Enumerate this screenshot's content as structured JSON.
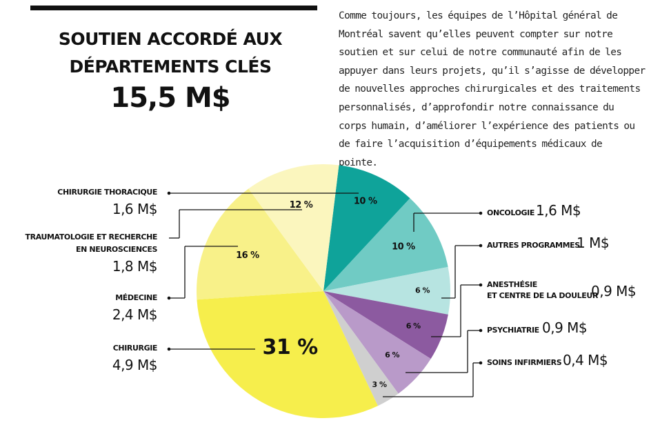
{
  "heading": {
    "line1": "SOUTIEN ACCORDÉ AUX",
    "line2": "DÉPARTEMENTS CLÉS",
    "total": "15,5 M$"
  },
  "intro": "Comme toujours, les équipes de l’Hôpital général de Montréal savent qu’elles peuvent compter sur notre soutien et sur celui de notre communauté afin de les appuyer dans leurs projets, qu’il s’agisse de développer de nouvelles approches chirurgicales et des traitements personnalisés, d’approfondir notre connaissance du corps humain, d’améliorer l’expérience des patients ou de faire l’acquisition d’équipements médicaux de pointe.",
  "labels": {
    "thoracique": {
      "name": "CHIRURGIE THORACIQUE",
      "value": "1,6 M$"
    },
    "trauma": {
      "name1": "TRAUMATOLOGIE ET RECHERCHE",
      "name2": "EN NEUROSCIENCES",
      "value": "1,8 M$"
    },
    "medecine": {
      "name": "MÉDECINE",
      "value": "2,4 M$"
    },
    "chirurgie": {
      "name": "CHIRURGIE",
      "value": "4,9 M$"
    },
    "oncologie": {
      "name": "ONCOLOGIE",
      "value": "1,6 M$"
    },
    "autres": {
      "name": "AUTRES PROGRAMMES",
      "value": "1 M$"
    },
    "anesthesie": {
      "name1": "ANESTHÉSIE",
      "name2": "ET CENTRE DE LA DOULEUR",
      "value": "0,9 M$"
    },
    "psychiatrie": {
      "name": "PSYCHIATRIE",
      "value": "0,9 M$"
    },
    "soins": {
      "name": "SOINS INFIRMIERS",
      "value": "0,4 M$"
    }
  },
  "chart_data": {
    "type": "pie",
    "slices": [
      {
        "label": "CHIRURGIE THORACIQUE",
        "percent": 10,
        "pct_text": "10 %",
        "color": "#0fa39a"
      },
      {
        "label": "ONCOLOGIE",
        "percent": 10,
        "pct_text": "10 %",
        "color": "#70cbc4"
      },
      {
        "label": "AUTRES PROGRAMMES",
        "percent": 6,
        "pct_text": "6 %",
        "color": "#b7e4e1"
      },
      {
        "label": "ANESTHÉSIE ET CENTRE DE LA DOULEUR",
        "percent": 6,
        "pct_text": "6 %",
        "color": "#8c5aa0"
      },
      {
        "label": "PSYCHIATRIE",
        "percent": 6,
        "pct_text": "6 %",
        "color": "#b99ac9"
      },
      {
        "label": "SOINS INFIRMIERS",
        "percent": 3,
        "pct_text": "3 %",
        "color": "#cfcfcf"
      },
      {
        "label": "CHIRURGIE",
        "percent": 31,
        "pct_text": "31 %",
        "color": "#f6ee4c"
      },
      {
        "label": "MÉDECINE",
        "percent": 16,
        "pct_text": "16 %",
        "color": "#f8f189"
      },
      {
        "label": "TRAUMATOLOGIE ET RECHERCHE EN NEUROSCIENCES",
        "percent": 12,
        "pct_text": "12 %",
        "color": "#fbf6be"
      }
    ]
  }
}
